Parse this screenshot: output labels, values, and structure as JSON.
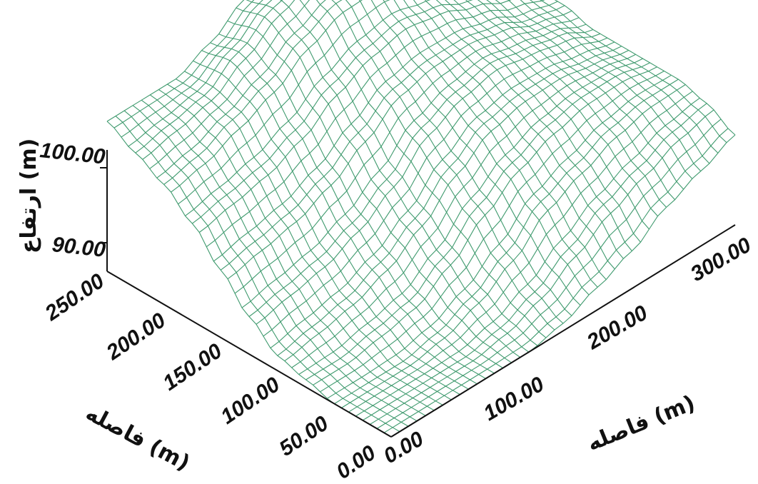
{
  "chart_data": {
    "type": "surface",
    "title": "",
    "xlabel": "فاصله (m)",
    "ylabel": "فاصله (m)",
    "zlabel": "ارتفاع (m)",
    "x_ticks": [
      "0.00",
      "100.00",
      "200.00",
      "300.00"
    ],
    "y_ticks": [
      "0.00",
      "50.00",
      "100.00",
      "150.00",
      "200.00",
      "250.00"
    ],
    "z_ticks": [
      "90.00",
      "100.00"
    ],
    "xlim": [
      0,
      300
    ],
    "ylim": [
      0,
      250
    ],
    "grid": true,
    "legend": "none",
    "colors": {
      "mesh": "#3f9a6e",
      "dense": "#2f8a5c",
      "axis": "#111111"
    },
    "surface_rows_y": [
      0,
      25,
      50,
      75,
      100,
      125,
      150,
      175,
      200,
      225,
      250
    ],
    "surface_cols_x": [
      0,
      30,
      60,
      90,
      120,
      150,
      180,
      210,
      240,
      270,
      300
    ],
    "z_values": [
      [
        80,
        80,
        80,
        80,
        80,
        81,
        83,
        85,
        88,
        90,
        92
      ],
      [
        80,
        80,
        80,
        80,
        81,
        83,
        86,
        89,
        91,
        93,
        94
      ],
      [
        80,
        80,
        80,
        81,
        83,
        86,
        90,
        92,
        94,
        95,
        95
      ],
      [
        81,
        81,
        82,
        83,
        86,
        90,
        93,
        95,
        96,
        96,
        95
      ],
      [
        82,
        83,
        84,
        86,
        89,
        93,
        96,
        97,
        97,
        96,
        95
      ],
      [
        85,
        86,
        87,
        89,
        92,
        96,
        98,
        99,
        98,
        97,
        95
      ],
      [
        89,
        90,
        91,
        93,
        96,
        99,
        100,
        100,
        99,
        97,
        96
      ],
      [
        93,
        94,
        95,
        97,
        100,
        102,
        103,
        102,
        100,
        98,
        96
      ],
      [
        96,
        97,
        99,
        101,
        104,
        106,
        106,
        104,
        102,
        99,
        97
      ],
      [
        98,
        99,
        100,
        103,
        106,
        108,
        108,
        106,
        103,
        100,
        97
      ],
      [
        100,
        100,
        100,
        102,
        105,
        108,
        109,
        108,
        105,
        101,
        98
      ]
    ]
  }
}
